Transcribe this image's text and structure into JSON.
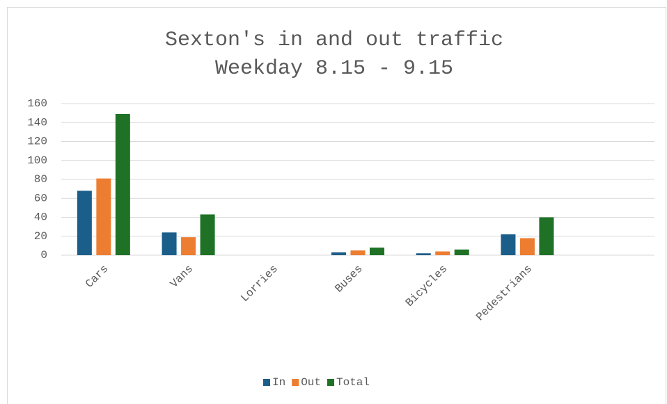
{
  "chart_data": {
    "type": "bar",
    "title": [
      "Sexton's in and out traffic",
      "Weekday 8.15 - 9.15"
    ],
    "categories": [
      "Cars",
      "Vans",
      "Lorries",
      "Buses",
      "Bicycles",
      "Pedestrians",
      null
    ],
    "series": [
      {
        "name": "In",
        "color": "#1b5e8a",
        "values": [
          68,
          24,
          0,
          3,
          2,
          22,
          null
        ]
      },
      {
        "name": "Out",
        "color": "#ed7d31",
        "values": [
          81,
          19,
          0,
          5,
          4,
          18,
          null
        ]
      },
      {
        "name": "Total",
        "color": "#1e7125",
        "values": [
          149,
          43,
          0,
          8,
          6,
          40,
          null
        ]
      }
    ],
    "ylim": [
      0,
      160
    ],
    "yticks": [
      0,
      20,
      40,
      60,
      80,
      100,
      120,
      140,
      160
    ],
    "grid": true,
    "legend": "bottom"
  }
}
